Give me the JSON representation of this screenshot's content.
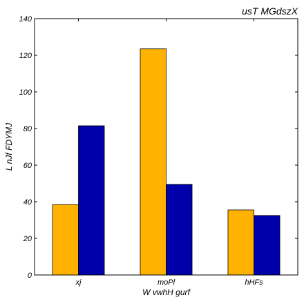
{
  "chart_data": {
    "type": "bar",
    "title": "usT MGdszX",
    "xlabel": "W vwhH gurf",
    "ylabel": "L nJf FDYMJ",
    "categories": [
      "xj",
      "moPl",
      "hHFs"
    ],
    "series": [
      {
        "values": [
          38.5,
          123.5,
          35.5
        ],
        "color": "#ffb300"
      },
      {
        "values": [
          81.5,
          49.5,
          32.5
        ],
        "color": "#0000aa"
      }
    ],
    "ylim": [
      0,
      140
    ],
    "yticks": [
      0,
      20,
      40,
      60,
      80,
      100,
      120,
      140
    ],
    "grid": false
  }
}
